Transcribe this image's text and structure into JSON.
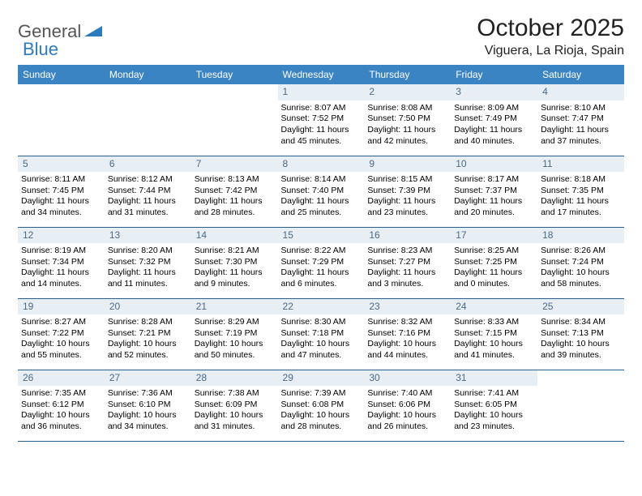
{
  "logo": {
    "general": "General",
    "blue": "Blue"
  },
  "header": {
    "month_title": "October 2025",
    "location": "Viguera, La Rioja, Spain"
  },
  "colors": {
    "header_bg": "#3b84c4",
    "header_fg": "#ffffff",
    "band_bg": "#e7eef4",
    "band_fg": "#4a6a88",
    "rule": "#2a5e8a",
    "logo_blue": "#2b7bbf"
  },
  "dow": [
    "Sunday",
    "Monday",
    "Tuesday",
    "Wednesday",
    "Thursday",
    "Friday",
    "Saturday"
  ],
  "weeks": [
    [
      {
        "n": "",
        "sr": "",
        "ss": "",
        "dl": ""
      },
      {
        "n": "",
        "sr": "",
        "ss": "",
        "dl": ""
      },
      {
        "n": "",
        "sr": "",
        "ss": "",
        "dl": ""
      },
      {
        "n": "1",
        "sr": "Sunrise: 8:07 AM",
        "ss": "Sunset: 7:52 PM",
        "dl": "Daylight: 11 hours and 45 minutes."
      },
      {
        "n": "2",
        "sr": "Sunrise: 8:08 AM",
        "ss": "Sunset: 7:50 PM",
        "dl": "Daylight: 11 hours and 42 minutes."
      },
      {
        "n": "3",
        "sr": "Sunrise: 8:09 AM",
        "ss": "Sunset: 7:49 PM",
        "dl": "Daylight: 11 hours and 40 minutes."
      },
      {
        "n": "4",
        "sr": "Sunrise: 8:10 AM",
        "ss": "Sunset: 7:47 PM",
        "dl": "Daylight: 11 hours and 37 minutes."
      }
    ],
    [
      {
        "n": "5",
        "sr": "Sunrise: 8:11 AM",
        "ss": "Sunset: 7:45 PM",
        "dl": "Daylight: 11 hours and 34 minutes."
      },
      {
        "n": "6",
        "sr": "Sunrise: 8:12 AM",
        "ss": "Sunset: 7:44 PM",
        "dl": "Daylight: 11 hours and 31 minutes."
      },
      {
        "n": "7",
        "sr": "Sunrise: 8:13 AM",
        "ss": "Sunset: 7:42 PM",
        "dl": "Daylight: 11 hours and 28 minutes."
      },
      {
        "n": "8",
        "sr": "Sunrise: 8:14 AM",
        "ss": "Sunset: 7:40 PM",
        "dl": "Daylight: 11 hours and 25 minutes."
      },
      {
        "n": "9",
        "sr": "Sunrise: 8:15 AM",
        "ss": "Sunset: 7:39 PM",
        "dl": "Daylight: 11 hours and 23 minutes."
      },
      {
        "n": "10",
        "sr": "Sunrise: 8:17 AM",
        "ss": "Sunset: 7:37 PM",
        "dl": "Daylight: 11 hours and 20 minutes."
      },
      {
        "n": "11",
        "sr": "Sunrise: 8:18 AM",
        "ss": "Sunset: 7:35 PM",
        "dl": "Daylight: 11 hours and 17 minutes."
      }
    ],
    [
      {
        "n": "12",
        "sr": "Sunrise: 8:19 AM",
        "ss": "Sunset: 7:34 PM",
        "dl": "Daylight: 11 hours and 14 minutes."
      },
      {
        "n": "13",
        "sr": "Sunrise: 8:20 AM",
        "ss": "Sunset: 7:32 PM",
        "dl": "Daylight: 11 hours and 11 minutes."
      },
      {
        "n": "14",
        "sr": "Sunrise: 8:21 AM",
        "ss": "Sunset: 7:30 PM",
        "dl": "Daylight: 11 hours and 9 minutes."
      },
      {
        "n": "15",
        "sr": "Sunrise: 8:22 AM",
        "ss": "Sunset: 7:29 PM",
        "dl": "Daylight: 11 hours and 6 minutes."
      },
      {
        "n": "16",
        "sr": "Sunrise: 8:23 AM",
        "ss": "Sunset: 7:27 PM",
        "dl": "Daylight: 11 hours and 3 minutes."
      },
      {
        "n": "17",
        "sr": "Sunrise: 8:25 AM",
        "ss": "Sunset: 7:25 PM",
        "dl": "Daylight: 11 hours and 0 minutes."
      },
      {
        "n": "18",
        "sr": "Sunrise: 8:26 AM",
        "ss": "Sunset: 7:24 PM",
        "dl": "Daylight: 10 hours and 58 minutes."
      }
    ],
    [
      {
        "n": "19",
        "sr": "Sunrise: 8:27 AM",
        "ss": "Sunset: 7:22 PM",
        "dl": "Daylight: 10 hours and 55 minutes."
      },
      {
        "n": "20",
        "sr": "Sunrise: 8:28 AM",
        "ss": "Sunset: 7:21 PM",
        "dl": "Daylight: 10 hours and 52 minutes."
      },
      {
        "n": "21",
        "sr": "Sunrise: 8:29 AM",
        "ss": "Sunset: 7:19 PM",
        "dl": "Daylight: 10 hours and 50 minutes."
      },
      {
        "n": "22",
        "sr": "Sunrise: 8:30 AM",
        "ss": "Sunset: 7:18 PM",
        "dl": "Daylight: 10 hours and 47 minutes."
      },
      {
        "n": "23",
        "sr": "Sunrise: 8:32 AM",
        "ss": "Sunset: 7:16 PM",
        "dl": "Daylight: 10 hours and 44 minutes."
      },
      {
        "n": "24",
        "sr": "Sunrise: 8:33 AM",
        "ss": "Sunset: 7:15 PM",
        "dl": "Daylight: 10 hours and 41 minutes."
      },
      {
        "n": "25",
        "sr": "Sunrise: 8:34 AM",
        "ss": "Sunset: 7:13 PM",
        "dl": "Daylight: 10 hours and 39 minutes."
      }
    ],
    [
      {
        "n": "26",
        "sr": "Sunrise: 7:35 AM",
        "ss": "Sunset: 6:12 PM",
        "dl": "Daylight: 10 hours and 36 minutes."
      },
      {
        "n": "27",
        "sr": "Sunrise: 7:36 AM",
        "ss": "Sunset: 6:10 PM",
        "dl": "Daylight: 10 hours and 34 minutes."
      },
      {
        "n": "28",
        "sr": "Sunrise: 7:38 AM",
        "ss": "Sunset: 6:09 PM",
        "dl": "Daylight: 10 hours and 31 minutes."
      },
      {
        "n": "29",
        "sr": "Sunrise: 7:39 AM",
        "ss": "Sunset: 6:08 PM",
        "dl": "Daylight: 10 hours and 28 minutes."
      },
      {
        "n": "30",
        "sr": "Sunrise: 7:40 AM",
        "ss": "Sunset: 6:06 PM",
        "dl": "Daylight: 10 hours and 26 minutes."
      },
      {
        "n": "31",
        "sr": "Sunrise: 7:41 AM",
        "ss": "Sunset: 6:05 PM",
        "dl": "Daylight: 10 hours and 23 minutes."
      },
      {
        "n": "",
        "sr": "",
        "ss": "",
        "dl": ""
      }
    ]
  ]
}
